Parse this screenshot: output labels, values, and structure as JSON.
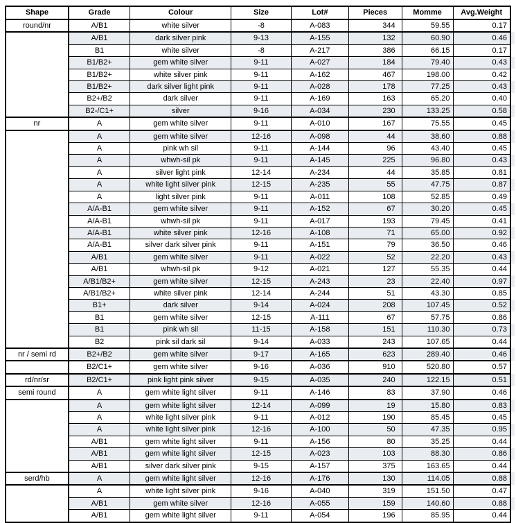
{
  "colors": {
    "row_shade": "#e9edf2",
    "border": "#000000",
    "background": "#ffffff",
    "text": "#000000"
  },
  "table": {
    "columns": [
      {
        "key": "shape",
        "label": "Shape"
      },
      {
        "key": "grade",
        "label": "Grade"
      },
      {
        "key": "colour",
        "label": "Colour"
      },
      {
        "key": "size",
        "label": "Size"
      },
      {
        "key": "lot",
        "label": "Lot#"
      },
      {
        "key": "pieces",
        "label": "Pieces"
      },
      {
        "key": "momme",
        "label": "Momme"
      },
      {
        "key": "avg_weight",
        "label": "Avg.Weight"
      }
    ],
    "groups": [
      {
        "shape": "round/nr",
        "rows": [
          [
            "A/B1",
            "white silver",
            "-8",
            "A-083",
            "344",
            "59.55",
            "0.17"
          ],
          [
            "A/B1",
            "dark silver pink",
            "9-13",
            "A-155",
            "132",
            "60.90",
            "0.46"
          ],
          [
            "B1",
            "white silver",
            "-8",
            "A-217",
            "386",
            "66.15",
            "0.17"
          ],
          [
            "B1/B2+",
            "gem white silver",
            "9-11",
            "A-027",
            "184",
            "79.40",
            "0.43"
          ],
          [
            "B1/B2+",
            "white silver pink",
            "9-11",
            "A-162",
            "467",
            "198.00",
            "0.42"
          ],
          [
            "B1/B2+",
            "dark silver light pink",
            "9-11",
            "A-028",
            "178",
            "77.25",
            "0.43"
          ],
          [
            "B2+/B2",
            "dark silver",
            "9-11",
            "A-169",
            "163",
            "65.20",
            "0.40"
          ],
          [
            "B2-/C1+",
            "silver",
            "9-16",
            "A-034",
            "230",
            "133.25",
            "0.58"
          ]
        ]
      },
      {
        "shape": "nr",
        "rows": [
          [
            "A",
            "gem white silver",
            "9-11",
            "A-010",
            "167",
            "75.55",
            "0.45"
          ],
          [
            "A",
            "gem white silver",
            "12-16",
            "A-098",
            "44",
            "38.60",
            "0.88"
          ],
          [
            "A",
            "pink wh sil",
            "9-11",
            "A-144",
            "96",
            "43.40",
            "0.45"
          ],
          [
            "A",
            "whwh-sil pk",
            "9-11",
            "A-145",
            "225",
            "96.80",
            "0.43"
          ],
          [
            "A",
            "silver light pink",
            "12-14",
            "A-234",
            "44",
            "35.85",
            "0.81"
          ],
          [
            "A",
            "white light silver pink",
            "12-15",
            "A-235",
            "55",
            "47.75",
            "0.87"
          ],
          [
            "A",
            "light silver pink",
            "9-11",
            "A-011",
            "108",
            "52.85",
            "0.49"
          ],
          [
            "A/A-B1",
            "gem white silver",
            "9-11",
            "A-152",
            "67",
            "30.20",
            "0.45"
          ],
          [
            "A/A-B1",
            "whwh-sil pk",
            "9-11",
            "A-017",
            "193",
            "79.45",
            "0.41"
          ],
          [
            "A/A-B1",
            "white silver pink",
            "12-16",
            "A-108",
            "71",
            "65.00",
            "0.92"
          ],
          [
            "A/A-B1",
            "silver dark silver pink",
            "9-11",
            "A-151",
            "79",
            "36.50",
            "0.46"
          ],
          [
            "A/B1",
            "gem white silver",
            "9-11",
            "A-022",
            "52",
            "22.20",
            "0.43"
          ],
          [
            "A/B1",
            "whwh-sil pk",
            "9-12",
            "A-021",
            "127",
            "55.35",
            "0.44"
          ],
          [
            "A/B1/B2+",
            "gem white silver",
            "12-15",
            "A-243",
            "23",
            "22.40",
            "0.97"
          ],
          [
            "A/B1/B2+",
            "white silver pink",
            "12-14",
            "A-244",
            "51",
            "43.30",
            "0.85"
          ],
          [
            "B1+",
            "dark silver",
            "9-14",
            "A-024",
            "208",
            "107.45",
            "0.52"
          ],
          [
            "B1",
            "gem white silver",
            "12-15",
            "A-111",
            "67",
            "57.75",
            "0.86"
          ],
          [
            "B1",
            "pink wh sil",
            "11-15",
            "A-158",
            "151",
            "110.30",
            "0.73"
          ],
          [
            "B2",
            "pink sil dark sil",
            "9-14",
            "A-033",
            "243",
            "107.65",
            "0.44"
          ]
        ]
      },
      {
        "shape": "nr / semi rd",
        "rows": [
          [
            "B2+/B2",
            "gem white silver",
            "9-17",
            "A-165",
            "623",
            "289.40",
            "0.46"
          ],
          [
            "B2/C1+",
            "gem white silver",
            "9-16",
            "A-036",
            "910",
            "520.80",
            "0.57"
          ]
        ]
      },
      {
        "shape": "rd/nr/sr",
        "rows": [
          [
            "B2/C1+",
            "pink light pink silver",
            "9-15",
            "A-035",
            "240",
            "122.15",
            "0.51"
          ]
        ]
      },
      {
        "shape": "semi round",
        "rows": [
          [
            "A",
            "gem white light silver",
            "9-11",
            "A-146",
            "83",
            "37.90",
            "0.46"
          ],
          [
            "A",
            "gem white light silver",
            "12-14",
            "A-099",
            "19",
            "15.80",
            "0.83"
          ],
          [
            "A",
            "white light silver pink",
            "9-11",
            "A-012",
            "190",
            "85.45",
            "0.45"
          ],
          [
            "A",
            "white light silver pink",
            "12-16",
            "A-100",
            "50",
            "47.35",
            "0.95"
          ],
          [
            "A/B1",
            "gem white light silver",
            "9-11",
            "A-156",
            "80",
            "35.25",
            "0.44"
          ],
          [
            "A/B1",
            "gem white light silver",
            "12-15",
            "A-023",
            "103",
            "88.30",
            "0.86"
          ],
          [
            "A/B1",
            "silver dark silver pink",
            "9-15",
            "A-157",
            "375",
            "163.65",
            "0.44"
          ]
        ]
      },
      {
        "shape": "serd/hb",
        "rows": [
          [
            "A",
            "gem white light silver",
            "12-16",
            "A-176",
            "130",
            "114.05",
            "0.88"
          ],
          [
            "A",
            "white light silver pink",
            "9-16",
            "A-040",
            "319",
            "151.50",
            "0.47"
          ],
          [
            "A/B1",
            "gem white silver",
            "12-16",
            "A-055",
            "159",
            "140.60",
            "0.88"
          ],
          [
            "A/B1",
            "gem white light silver",
            "9-11",
            "A-054",
            "196",
            "85.95",
            "0.44"
          ]
        ]
      }
    ]
  }
}
